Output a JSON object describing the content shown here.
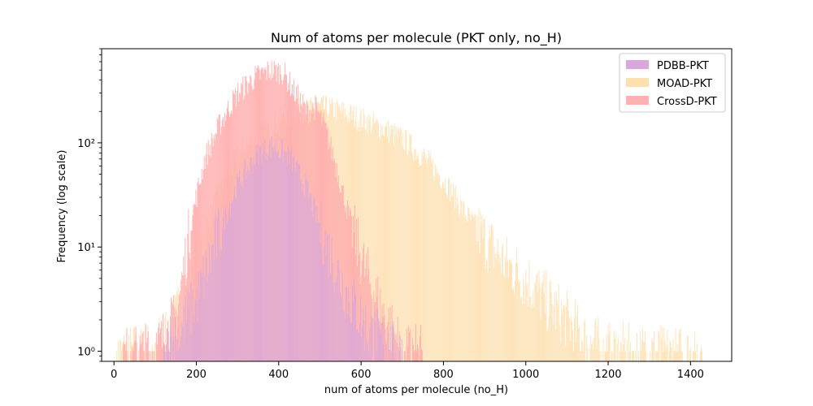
{
  "chart_data": {
    "type": "histogram",
    "title": "Num of atoms per molecule (PKT only, no_H)",
    "xlabel": "num of atoms per molecule (no_H)",
    "ylabel": "Frequency (log scale)",
    "xlim": [
      -30,
      1500
    ],
    "ylim": [
      0.8,
      800
    ],
    "yscale": "log",
    "x_ticks": [
      0,
      200,
      400,
      600,
      800,
      1000,
      1200,
      1400
    ],
    "y_ticks": [
      {
        "value": 1,
        "label": "10⁰"
      },
      {
        "value": 10,
        "label": "10¹"
      },
      {
        "value": 100,
        "label": "10²"
      }
    ],
    "bin_width": 2,
    "legend_position": "upper right",
    "series": [
      {
        "name": "PDBB-PKT",
        "color": "#d8a8dc",
        "profile": [
          [
            120,
            0.8
          ],
          [
            200,
            3
          ],
          [
            250,
            12
          ],
          [
            300,
            40
          ],
          [
            350,
            80
          ],
          [
            390,
            95
          ],
          [
            430,
            70
          ],
          [
            470,
            35
          ],
          [
            510,
            12
          ],
          [
            560,
            4
          ],
          [
            620,
            1.5
          ],
          [
            680,
            1
          ],
          [
            700,
            0.9
          ]
        ]
      },
      {
        "name": "MOAD-PKT",
        "color": "#fde0b0",
        "profile": [
          [
            5,
            0.9
          ],
          [
            100,
            1
          ],
          [
            150,
            2
          ],
          [
            200,
            8
          ],
          [
            250,
            30
          ],
          [
            300,
            75
          ],
          [
            350,
            120
          ],
          [
            400,
            160
          ],
          [
            450,
            200
          ],
          [
            500,
            220
          ],
          [
            550,
            200
          ],
          [
            600,
            170
          ],
          [
            650,
            140
          ],
          [
            700,
            110
          ],
          [
            750,
            75
          ],
          [
            800,
            45
          ],
          [
            850,
            22
          ],
          [
            900,
            12
          ],
          [
            950,
            7
          ],
          [
            1000,
            5
          ],
          [
            1050,
            3
          ],
          [
            1100,
            2
          ],
          [
            1150,
            1.2
          ],
          [
            1200,
            1
          ],
          [
            1300,
            0.95
          ],
          [
            1430,
            0.9
          ]
        ]
      },
      {
        "name": "CrossD-PKT",
        "color": "#ffb0b0",
        "profile": [
          [
            20,
            0.9
          ],
          [
            100,
            1
          ],
          [
            150,
            2
          ],
          [
            190,
            20
          ],
          [
            220,
            70
          ],
          [
            260,
            160
          ],
          [
            300,
            300
          ],
          [
            340,
            420
          ],
          [
            380,
            500
          ],
          [
            410,
            480
          ],
          [
            440,
            300
          ],
          [
            470,
            200
          ],
          [
            490,
            220
          ],
          [
            510,
            150
          ],
          [
            540,
            60
          ],
          [
            570,
            20
          ],
          [
            610,
            6
          ],
          [
            650,
            2.5
          ],
          [
            700,
            1
          ],
          [
            750,
            0.9
          ]
        ]
      }
    ]
  }
}
